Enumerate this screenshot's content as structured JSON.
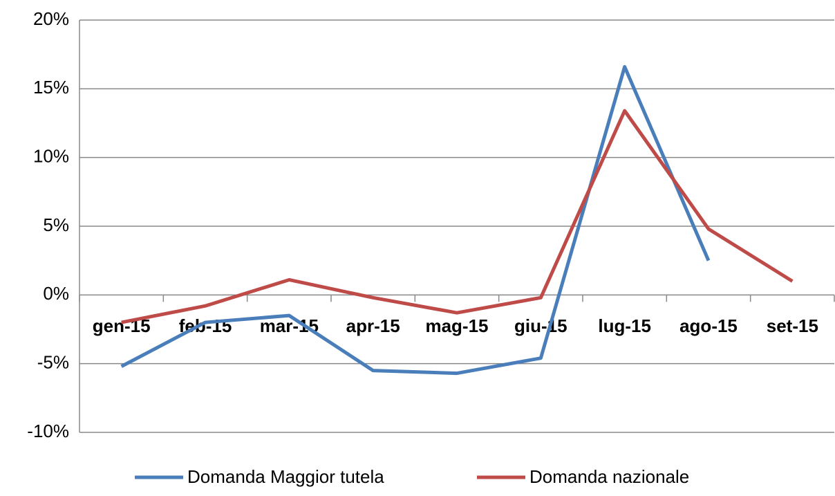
{
  "chart_data": {
    "type": "line",
    "categories": [
      "gen-15",
      "feb-15",
      "mar-15",
      "apr-15",
      "mag-15",
      "giu-15",
      "lug-15",
      "ago-15",
      "set-15"
    ],
    "series": [
      {
        "name": "Domanda Maggior tutela",
        "color": "#4a7ebb",
        "values": [
          -5.2,
          -2.0,
          -1.5,
          -5.5,
          -5.7,
          -4.6,
          16.6,
          2.5,
          null
        ]
      },
      {
        "name": "Domanda nazionale",
        "color": "#be4b48",
        "values": [
          -2.0,
          -0.8,
          1.1,
          -0.2,
          -1.3,
          -0.2,
          13.4,
          4.8,
          1.0
        ]
      }
    ],
    "ylim": [
      -10,
      20
    ],
    "yticks": [
      {
        "value": -10,
        "label": "-10%"
      },
      {
        "value": -5,
        "label": "-5%"
      },
      {
        "value": 0,
        "label": "0%"
      },
      {
        "value": 5,
        "label": "5%"
      },
      {
        "value": 10,
        "label": "10%"
      },
      {
        "value": 15,
        "label": "15%"
      },
      {
        "value": 20,
        "label": "20%"
      }
    ],
    "grid": true,
    "legend": "bottom"
  }
}
